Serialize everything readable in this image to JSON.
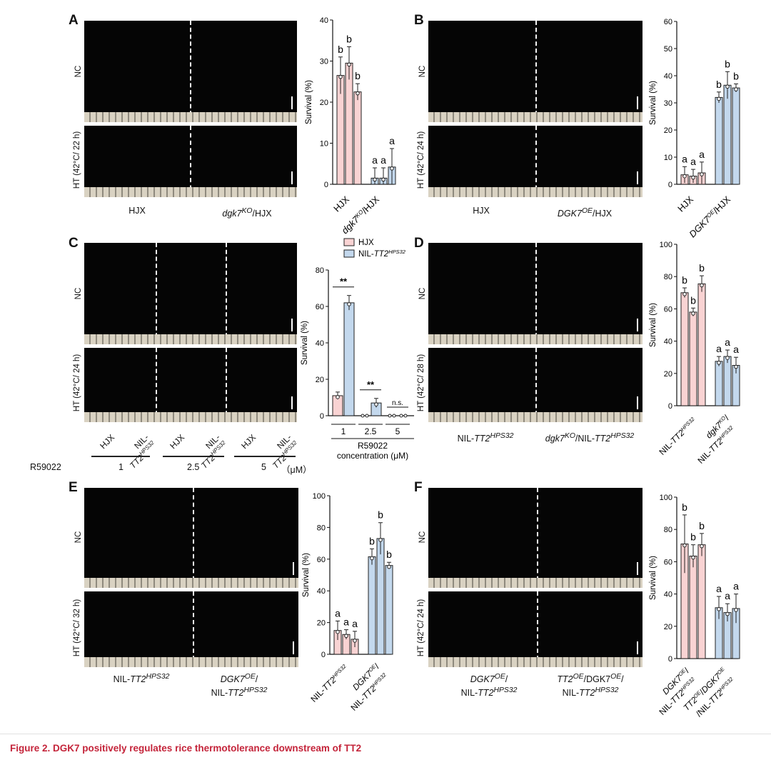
{
  "caption": "Figure 2. DGK7 positively regulates rice thermotolerance downstream of TT2",
  "colors": {
    "pink": "#f9d3d3",
    "blue": "#c3d8ed",
    "caption": "#c4243a"
  },
  "panels": {
    "A": {
      "letter": "A",
      "row_top": "NC",
      "row_bottom": "HT (42°C/ 22 h)",
      "groups": [
        {
          "main": "HJX"
        },
        {
          "main": "dgk7",
          "sup": "KO",
          "rest": "/HJX"
        }
      ]
    },
    "B": {
      "letter": "B",
      "row_top": "NC",
      "row_bottom": "HT (42°C/ 24 h)",
      "groups": [
        {
          "main": "HJX"
        },
        {
          "main": "DGK7",
          "sup": "OE",
          "rest": "/HJX"
        }
      ]
    },
    "C": {
      "letter": "C",
      "row_top": "NC",
      "row_bottom": "HT (42°C/ 24 h)",
      "lanes": [
        "HJX",
        "NIL-",
        "TT2",
        "HPS32"
      ],
      "r59022_label": "R59022",
      "conc": [
        "1",
        "2.5",
        "5"
      ],
      "unit": "（μM）"
    },
    "D": {
      "letter": "D",
      "row_top": "NC",
      "row_bottom": "HT (42°C/ 28 h)",
      "groups": [
        {
          "main": "NIL-",
          "ital": "TT2",
          "sup": "HPS32"
        },
        {
          "main": "dgk7",
          "sup": "KO",
          "rest": "/NIL-",
          "ital": "TT2",
          "sup2": "HPS32"
        }
      ]
    },
    "E": {
      "letter": "E",
      "row_top": "NC",
      "row_bottom": "HT (42°C/ 32 h)",
      "groups": [
        {
          "main": "NIL-",
          "ital": "TT2",
          "sup": "HPS32"
        },
        {
          "main": "DGK7",
          "sup": "OE",
          "rest": "/",
          "line2": "NIL-",
          "ital2": "TT2",
          "sup2": "HPS32"
        }
      ]
    },
    "F": {
      "letter": "F",
      "row_top": "NC",
      "row_bottom": "HT (42°C/ 24 h)",
      "groups": [
        {
          "main": "DGK7",
          "sup": "OE",
          "rest": "/",
          "line2": "NIL-",
          "ital2": "TT2",
          "sup2": "HPS32"
        },
        {
          "main": "TT2",
          "sup": "OE",
          "rest": "/DGK7",
          "sup1b": "OE",
          "rest2": "/",
          "line2": "NIL-",
          "ital2": "TT2",
          "sup2": "HPS32"
        }
      ]
    }
  },
  "chart_data": [
    {
      "panel": "A",
      "type": "bar",
      "ylabel": "Survival (%)",
      "ylim": [
        0,
        40
      ],
      "yticks": [
        0,
        10,
        20,
        30,
        40
      ],
      "series": [
        {
          "color": "pink",
          "values": [
            26.5,
            29.5,
            22.5
          ],
          "err": [
            4.5,
            4,
            2
          ],
          "letters": [
            "b",
            "b",
            "b"
          ]
        },
        {
          "color": "blue",
          "values": [
            1.5,
            1.5,
            4.2
          ],
          "err": [
            2.5,
            2.5,
            4.5
          ],
          "letters": [
            "a",
            "a",
            "a"
          ]
        }
      ],
      "xlabels": [
        {
          "text": "HJX"
        },
        {
          "text": "dgk7",
          "sup": "KO",
          "rest": "/HJX",
          "italic": true
        }
      ]
    },
    {
      "panel": "B",
      "type": "bar",
      "ylabel": "Survival (%)",
      "ylim": [
        0,
        60
      ],
      "yticks": [
        0,
        10,
        20,
        30,
        40,
        50,
        60
      ],
      "series": [
        {
          "color": "pink",
          "values": [
            3.5,
            3,
            4.2
          ],
          "err": [
            3,
            2.5,
            4
          ],
          "letters": [
            "a",
            "a",
            "a"
          ]
        },
        {
          "color": "blue",
          "values": [
            32,
            36.5,
            35.5
          ],
          "err": [
            2,
            5,
            1.5
          ],
          "letters": [
            "b",
            "b",
            "b"
          ]
        }
      ],
      "xlabels": [
        {
          "text": "HJX"
        },
        {
          "text": "DGK7",
          "sup": "OE",
          "rest": "/HJX",
          "italic": true
        }
      ]
    },
    {
      "panel": "C",
      "type": "bar",
      "ylabel": "Survival (%)",
      "ylim": [
        0,
        80
      ],
      "yticks": [
        0,
        20,
        40,
        60,
        80
      ],
      "legend": [
        {
          "label": "HJX",
          "color": "pink"
        },
        {
          "label": "NIL-TT2",
          "sup": "HPS32",
          "color": "blue"
        }
      ],
      "groups": [
        "1",
        "2.5",
        "5"
      ],
      "values": [
        [
          11,
          62
        ],
        [
          0,
          7
        ],
        [
          0,
          0
        ]
      ],
      "err": [
        [
          2,
          4
        ],
        [
          0,
          2.5
        ],
        [
          0,
          0
        ]
      ],
      "sig": [
        "**",
        "**",
        "n.s."
      ],
      "xlabel": "R59022",
      "xlabel2": "concentration (μM)"
    },
    {
      "panel": "D",
      "type": "bar",
      "ylabel": "Survival (%)",
      "ylim": [
        0,
        100
      ],
      "yticks": [
        0,
        20,
        40,
        60,
        80,
        100
      ],
      "series": [
        {
          "color": "pink",
          "values": [
            70,
            58,
            75.5
          ],
          "err": [
            3,
            2.5,
            5
          ],
          "letters": [
            "b",
            "b",
            "b"
          ]
        },
        {
          "color": "blue",
          "values": [
            27.5,
            30.5,
            25
          ],
          "err": [
            3,
            4,
            5
          ],
          "letters": [
            "a",
            "a",
            "a"
          ]
        }
      ],
      "xlabels": [
        {
          "text": "NIL-TT2",
          "sup": "HPS32"
        },
        {
          "text": "dgk7",
          "sup": "KO",
          "rest": "/",
          "line2": "NIL-TT2",
          "sup2": "HPS32"
        }
      ]
    },
    {
      "panel": "E",
      "type": "bar",
      "ylabel": "Survival (%)",
      "ylim": [
        0,
        100
      ],
      "yticks": [
        0,
        20,
        40,
        60,
        80,
        100
      ],
      "series": [
        {
          "color": "pink",
          "values": [
            15,
            12.5,
            9.5
          ],
          "err": [
            6,
            3,
            5
          ],
          "letters": [
            "a",
            "a",
            "a"
          ]
        },
        {
          "color": "blue",
          "values": [
            61.5,
            73,
            56
          ],
          "err": [
            5,
            10,
            2
          ],
          "letters": [
            "b",
            "b",
            "b"
          ]
        }
      ],
      "xlabels": [
        {
          "text": "NIL-TT2",
          "sup": "HPS32"
        },
        {
          "text": "DGK7",
          "sup": "OE",
          "rest": "/",
          "line2": "NIL-TT2",
          "sup2": "HPS32"
        }
      ]
    },
    {
      "panel": "F",
      "type": "bar",
      "ylabel": "Survival (%)",
      "ylim": [
        0,
        100
      ],
      "yticks": [
        0,
        20,
        40,
        60,
        80,
        100
      ],
      "series": [
        {
          "color": "pink",
          "values": [
            71,
            63.5,
            70.5
          ],
          "err": [
            18,
            7,
            7
          ],
          "letters": [
            "b",
            "b",
            "b"
          ]
        },
        {
          "color": "blue",
          "values": [
            31.5,
            28.5,
            31
          ],
          "err": [
            7,
            5.5,
            9
          ],
          "letters": [
            "a",
            "a",
            "a"
          ]
        }
      ],
      "xlabels": [
        {
          "text": "DGK7",
          "sup": "OE",
          "rest": "/",
          "line2": "NIL-TT2",
          "sup2": "HPS32"
        },
        {
          "text": "TT2",
          "sup": "OE",
          "rest": "/DGK7",
          "sup1b": "OE",
          "line2": "/NIL-TT2",
          "sup2": "HPS32"
        }
      ]
    }
  ]
}
